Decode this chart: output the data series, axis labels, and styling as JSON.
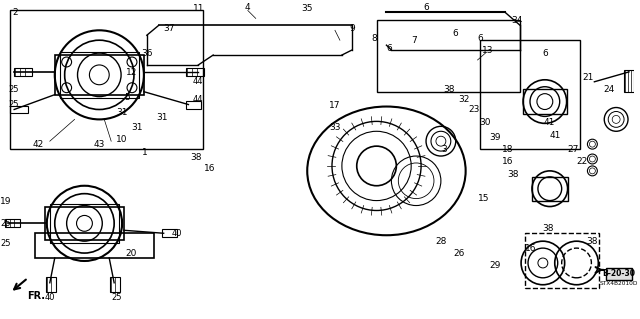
{
  "title": "",
  "bg_color": "#ffffff",
  "diagram_code": "B-20-30",
  "diagram_id": "STX4B2010D",
  "line_color": "#000000",
  "text_color": "#000000",
  "fr_label": "FR."
}
